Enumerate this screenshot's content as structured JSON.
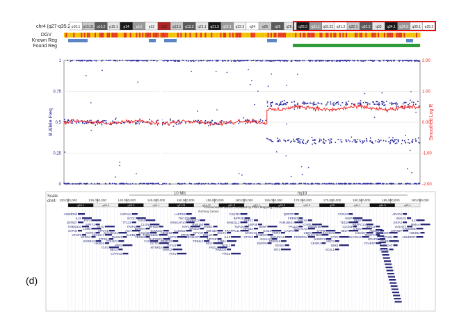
{
  "panel_label": "(d)",
  "ideogram": {
    "chromosome_label": "chr4 (q27-q35.2)",
    "bands": [
      "p16.1",
      "p15.31",
      "p15.2",
      "p15.1",
      "p14",
      "p13",
      "p12",
      "q12",
      "q13.1",
      "q13.3",
      "q21.1",
      "q21.3",
      "q22.1",
      "q22.3",
      "q24",
      "q25",
      "q26",
      "q28.1",
      "q28.3",
      "q31.1",
      "q31.21",
      "q31.3",
      "q32.1",
      "q32.3",
      "q33",
      "q34.1",
      "q34.3",
      "q35.1",
      "q35.2"
    ]
  },
  "tracks": {
    "labels": [
      "DGV",
      "Known Reg",
      "Found Reg"
    ],
    "colors": {
      "dgv_a": "#f2c200",
      "dgv_b": "#e33a1a",
      "known": "#5b86c5",
      "found": "#2f9c3a"
    }
  },
  "colors": {
    "baf": "#23239a",
    "logr": "#ee1b1b"
  },
  "chart_data": {
    "type": "scatter",
    "title": "",
    "xlabel": "",
    "ylabel_left": "B Allele Freq",
    "ylabel_right": "Smoothed Log R",
    "ylim_left": [
      0,
      1
    ],
    "ylim_right": [
      -2,
      2
    ],
    "yticks_left": [
      "0",
      "0.25",
      "0.5",
      "0.75",
      "1"
    ],
    "yticks_right": [
      "-2.00",
      "-1.00",
      "0.00",
      "1.00",
      "2.00"
    ],
    "grid": true,
    "series": [
      {
        "name": "B Allele Freq",
        "segments": [
          {
            "x_from": 0.0,
            "x_to": 0.57,
            "levels": [
              0.0,
              0.5,
              1.0
            ]
          },
          {
            "x_from": 0.57,
            "x_to": 1.0,
            "levels": [
              0.0,
              0.35,
              0.65,
              1.0
            ]
          }
        ]
      },
      {
        "name": "Smoothed Log R",
        "segments": [
          {
            "x_from": 0.0,
            "x_to": 0.57,
            "value": 0.0
          },
          {
            "x_from": 0.57,
            "x_to": 1.0,
            "value": 0.45
          }
        ]
      }
    ]
  },
  "genome_browser": {
    "scale_label": "Scale",
    "chrom_label": "chr4:",
    "scale_bar_label": "10 Mb",
    "assembly_label": "hg19",
    "positions": [
      "130,000,000",
      "135,000,000",
      "140,000,000",
      "145,000,000",
      "150,000,000",
      "155,000,000",
      "160,000,000",
      "165,000,000",
      "170,000,000",
      "175,000,000",
      "180,000,000",
      "185,000,000",
      "190,000,000"
    ],
    "track_title": "Chromosome Bands Localized by FISH Mapping Clones",
    "genes_title": "RefSeq Genes",
    "bands": [
      "q28.1",
      "q28.2",
      "q28.3",
      "q31.1",
      "q31.21",
      "q31.22",
      "q31.3",
      "q32.1",
      "q32.2",
      "q32.3",
      "q33",
      "q34.1",
      "q34.3",
      "q35.1"
    ],
    "genes": [
      "ANKRD50",
      "FAT4",
      "INTU",
      "SLC25A31",
      "HSPA4L",
      "PLK4",
      "MFSD8",
      "ABHD18",
      "LARP1B",
      "PGRMC2",
      "JADE1",
      "SCLT1",
      "C4orf33",
      "PHF17",
      "NDNF",
      "TNIP3",
      "QRFPR",
      "ANXA5",
      "TMEM155",
      "EXOSC9",
      "CCNA2",
      "BBS7",
      "TRPC3",
      "KIAA1109",
      "ADAD1",
      "IL2",
      "IL21",
      "SPRY1",
      "SPATA5",
      "MAML3",
      "SCOC",
      "CLGN",
      "ELMOD2",
      "UCP1",
      "TBC1D9",
      "RNF150",
      "ZNF330",
      "IL15",
      "INPP4B",
      "USP38",
      "GAB1",
      "SMARCA5",
      "FREM3",
      "GYPE",
      "GYPB",
      "GYPA",
      "HHIP",
      "ANAPC10",
      "ABCE1",
      "OTUD4",
      "SMAD1",
      "MMAA",
      "ZNF827",
      "LSM6",
      "SLC10A7",
      "POU4F2",
      "TTC29",
      "EDNRA",
      "TMEM184C",
      "PRMT10",
      "ARHGAP10",
      "NR3C2",
      "DCLK2",
      "LRBA",
      "MAB21L2",
      "RPS3A",
      "SH3D19",
      "PRSS48",
      "FAM160A1",
      "GUCY1A3",
      "GUCY1B3",
      "ASIC5",
      "TDO2",
      "CTSO",
      "PDGFC",
      "GLRB",
      "GRIA2",
      "FAM198B",
      "TMEM144",
      "RXFP1",
      "ETFDH",
      "PPID",
      "FNIP2",
      "C4orf46",
      "RAPGEF2",
      "FSTL5",
      "NAF1",
      "NPY1R",
      "NPY5R",
      "TKTL2",
      "TMA16",
      "MARCH1",
      "ANXA10",
      "DDX60",
      "PALLD",
      "CBR4",
      "SH3RF1",
      "NEK1",
      "CLCN3",
      "C4orf27",
      "MFAP3L",
      "AADAT",
      "GALNT7",
      "HMGB2",
      "SAP30",
      "SCRG1",
      "HAND2",
      "NEIL3",
      "AGA",
      "TENM3",
      "DCTD",
      "WWC2",
      "CLDN22",
      "CDKN2AIP",
      "ING2",
      "RWDD4",
      "TRAPPC11",
      "STOX2",
      "ENPP6",
      "IRF2",
      "CASP3",
      "PRIMPOL",
      "CENPU",
      "ACSL1",
      "HELT",
      "SLC25A4",
      "CFAP97",
      "SNX25",
      "LRP2BP",
      "ANKRD37",
      "UFSP2",
      "SORBS2",
      "TLR3",
      "CYP4V2",
      "KLKB1",
      "F11",
      "MTNR1A",
      "FAT1",
      "ZFP42",
      "TRIML2",
      "FRG1",
      "FRG2"
    ]
  }
}
